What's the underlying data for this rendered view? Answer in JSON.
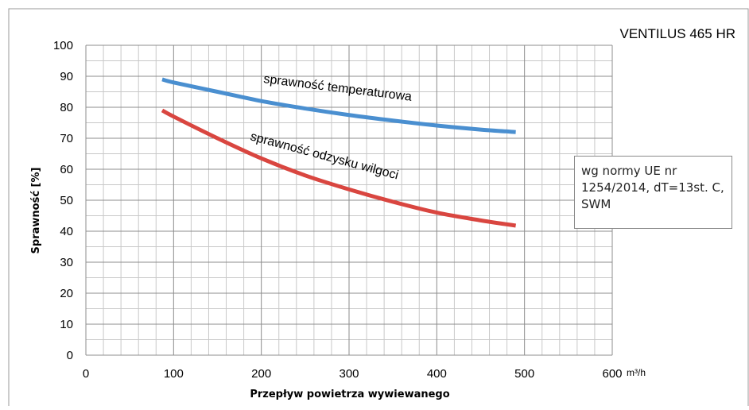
{
  "chart_data": {
    "type": "line",
    "title": "VENTILUS 465 HR",
    "xlabel": "Przepływ powietrza wywiewanego",
    "x_unit": "m³/h",
    "ylabel": "Sprawność [%]",
    "xlim": [
      0,
      600
    ],
    "ylim": [
      0,
      100
    ],
    "x_ticks": [
      0,
      100,
      200,
      300,
      400,
      500,
      600
    ],
    "y_ticks": [
      0,
      10,
      20,
      30,
      40,
      50,
      60,
      70,
      80,
      90,
      100
    ],
    "grid": true,
    "series": [
      {
        "name": "sprawność temperaturowa",
        "color": "#4a8fd0",
        "x": [
          87,
          100,
          150,
          200,
          250,
          300,
          350,
          400,
          450,
          490
        ],
        "y": [
          89,
          88,
          85,
          82,
          79.6,
          77.5,
          75.7,
          74.1,
          72.8,
          72
        ]
      },
      {
        "name": "sprawność odzysku wilgoci",
        "color": "#d94640",
        "x": [
          87,
          100,
          150,
          200,
          250,
          300,
          350,
          400,
          450,
          490
        ],
        "y": [
          79,
          77,
          70,
          63.5,
          58,
          53.5,
          49.5,
          46,
          43.5,
          41.8
        ]
      }
    ],
    "annotation": "wg normy UE nr 1254/2014, dT=13st. C, SWM"
  }
}
